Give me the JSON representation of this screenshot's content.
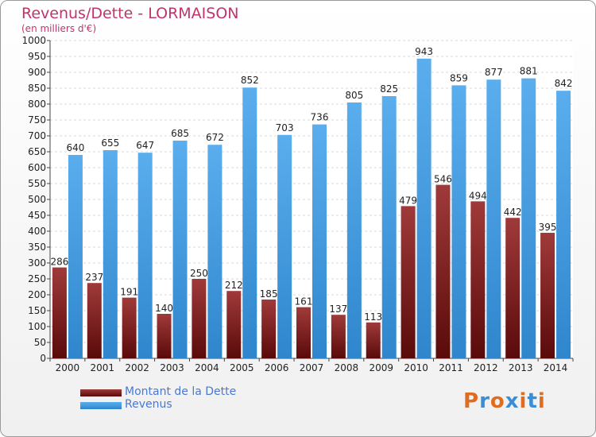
{
  "chart_data": {
    "type": "bar",
    "title": "Revenus/Dette - LORMAISON",
    "subtitle": "(en milliers d'€)",
    "categories": [
      "2000",
      "2001",
      "2002",
      "2003",
      "2004",
      "2005",
      "2006",
      "2007",
      "2008",
      "2009",
      "2010",
      "2011",
      "2012",
      "2013",
      "2014"
    ],
    "series": [
      {
        "name": "Montant de la Dette",
        "color": "#8b2a2a",
        "values": [
          286,
          237,
          191,
          140,
          250,
          212,
          185,
          161,
          137,
          113,
          479,
          546,
          494,
          442,
          395
        ]
      },
      {
        "name": "Revenus",
        "color": "#4da1e6",
        "values": [
          640,
          655,
          647,
          685,
          672,
          852,
          703,
          736,
          805,
          825,
          943,
          859,
          877,
          881,
          842
        ]
      }
    ],
    "ylim": [
      0,
      1000
    ],
    "yticks": [
      0,
      50,
      100,
      150,
      200,
      250,
      300,
      350,
      400,
      450,
      500,
      550,
      600,
      650,
      700,
      750,
      800,
      850,
      900,
      950,
      1000
    ],
    "grid": true,
    "legend_position": "bottom-left"
  },
  "legend": {
    "debt_label": "Montant de la Dette",
    "revenue_label": "Revenus"
  },
  "logo": {
    "text": "Proxiti",
    "colors": [
      "#e06c1f",
      "#3b8ed6",
      "#e06c1f",
      "#3b8ed6",
      "#e06c1f",
      "#3b8ed6",
      "#e06c1f"
    ]
  }
}
